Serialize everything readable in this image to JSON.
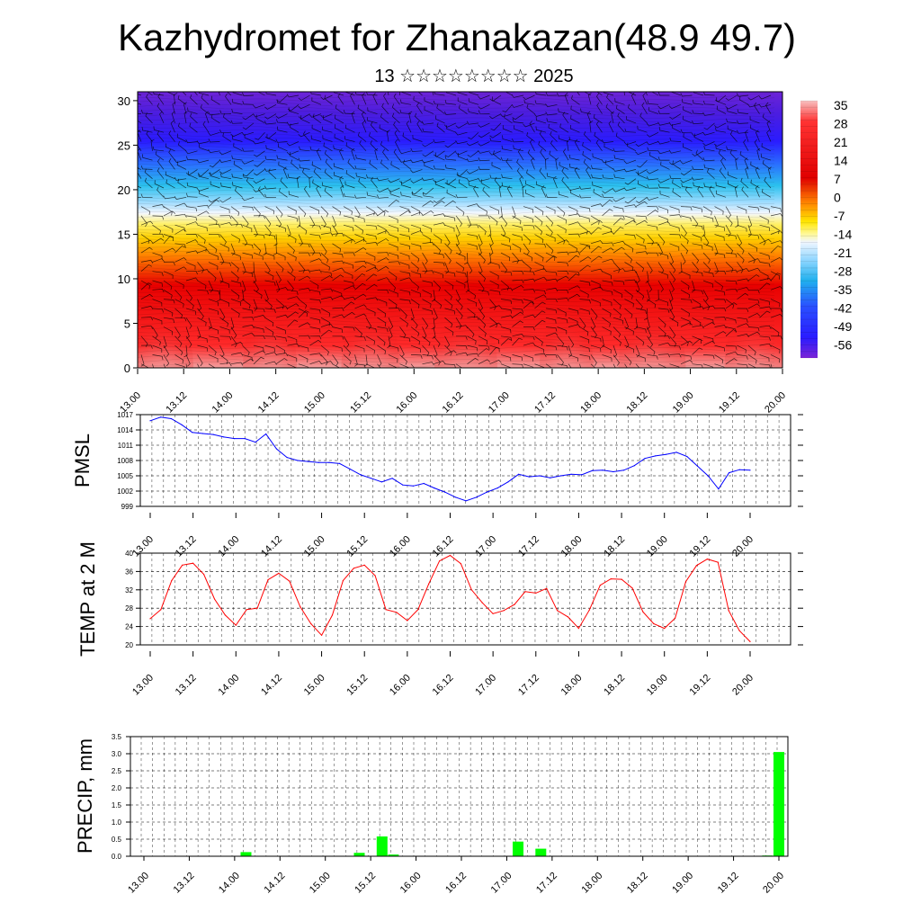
{
  "title": "Kazhydromet for Zhanakazan(48.9 49.7)",
  "subtitle": "13 ☆☆☆☆☆☆☆☆ 2025",
  "x_tick_labels": [
    "13.00",
    "13.12",
    "14.00",
    "14.12",
    "15.00",
    "15.12",
    "16.00",
    "16.12",
    "17.00",
    "17.12",
    "18.00",
    "18.12",
    "19.00",
    "19.12",
    "20.00"
  ],
  "chart_data": [
    {
      "type": "heatmap",
      "title": "Kazhydromet for Zhanakazan(48.9 49.7)",
      "subtitle": "13 ☆☆☆☆☆☆☆☆ 2025",
      "y_ticks": [
        0,
        5,
        10,
        15,
        20,
        25,
        30
      ],
      "ylim": [
        0,
        31
      ],
      "colorbar_labels": [
        "35",
        "28",
        "21",
        "14",
        "7",
        "0",
        "-7",
        "-14",
        "-21",
        "-28",
        "-35",
        "-42",
        "-49",
        "-56"
      ],
      "colorbar_range": [
        -60,
        38
      ],
      "colors": {
        "cold": "#7a00d6",
        "blue": "#2a1cff",
        "cyan": "#2bc1ee",
        "pale": "#eef6ff",
        "yellow": "#ffee33",
        "orange": "#ff6a00",
        "red": "#e80000",
        "pink": "#f6b0b0"
      }
    },
    {
      "type": "line",
      "ylabel": "PMSL",
      "y_ticks": [
        999,
        1002,
        1005,
        1008,
        1011,
        1014,
        1017
      ],
      "ylim": [
        999,
        1017
      ],
      "color": "#0000ff",
      "values": [
        1015.8,
        1016.5,
        1016.2,
        1015.0,
        1013.5,
        1013.3,
        1013.1,
        1012.6,
        1012.3,
        1012.3,
        1011.6,
        1013.2,
        1010.3,
        1008.6,
        1008.0,
        1007.8,
        1007.6,
        1007.6,
        1007.4,
        1006.3,
        1005.2,
        1004.5,
        1003.8,
        1004.5,
        1003.2,
        1003.0,
        1003.5,
        1002.6,
        1001.8,
        1000.8,
        1000.1,
        1000.8,
        1001.8,
        1002.6,
        1003.8,
        1005.3,
        1004.8,
        1005.0,
        1004.6,
        1005.0,
        1005.3,
        1005.2,
        1006.0,
        1006.1,
        1005.8,
        1006.1,
        1007.0,
        1008.4,
        1008.9,
        1009.2,
        1009.6,
        1008.8,
        1006.9,
        1005.0,
        1002.4,
        1005.6,
        1006.2,
        1006.1
      ]
    },
    {
      "type": "line",
      "ylabel": "TEMP at 2 M",
      "y_ticks": [
        20,
        24,
        28,
        32,
        36,
        40
      ],
      "ylim": [
        20,
        40
      ],
      "color": "#ff0000",
      "values": [
        25.7,
        27.7,
        34.0,
        37.4,
        37.8,
        35.4,
        30.0,
        26.5,
        24.3,
        27.7,
        28.0,
        34.2,
        35.6,
        33.9,
        28.3,
        24.6,
        22.1,
        26.5,
        34.0,
        36.7,
        37.4,
        35.1,
        27.7,
        27.1,
        25.3,
        27.7,
        33.3,
        38.3,
        39.5,
        37.7,
        32.0,
        29.2,
        26.8,
        27.5,
        28.8,
        31.6,
        31.3,
        32.3,
        27.5,
        26.1,
        23.6,
        27.6,
        33.0,
        34.4,
        34.3,
        32.4,
        27.2,
        24.6,
        23.6,
        25.8,
        33.8,
        37.3,
        38.7,
        38.0,
        27.5,
        23.1,
        20.7
      ]
    },
    {
      "type": "bar",
      "ylabel": "PRECIP, mm",
      "y_ticks": [
        "0.0",
        "0.5",
        "1.0",
        "1.5",
        "2.0",
        "2.5",
        "3.0",
        "3.5"
      ],
      "ylim": [
        0,
        3.5
      ],
      "color": "#00ff00",
      "bars": [
        {
          "time": "14.03",
          "value": 0.12
        },
        {
          "time": "15.09",
          "value": 0.1
        },
        {
          "time": "15.15",
          "value": 0.58
        },
        {
          "time": "15.18",
          "value": 0.05
        },
        {
          "time": "17.03",
          "value": 0.43
        },
        {
          "time": "17.09",
          "value": 0.22
        },
        {
          "time": "19.21",
          "value": 0.02
        },
        {
          "time": "20.00",
          "value": 3.05
        }
      ]
    }
  ]
}
